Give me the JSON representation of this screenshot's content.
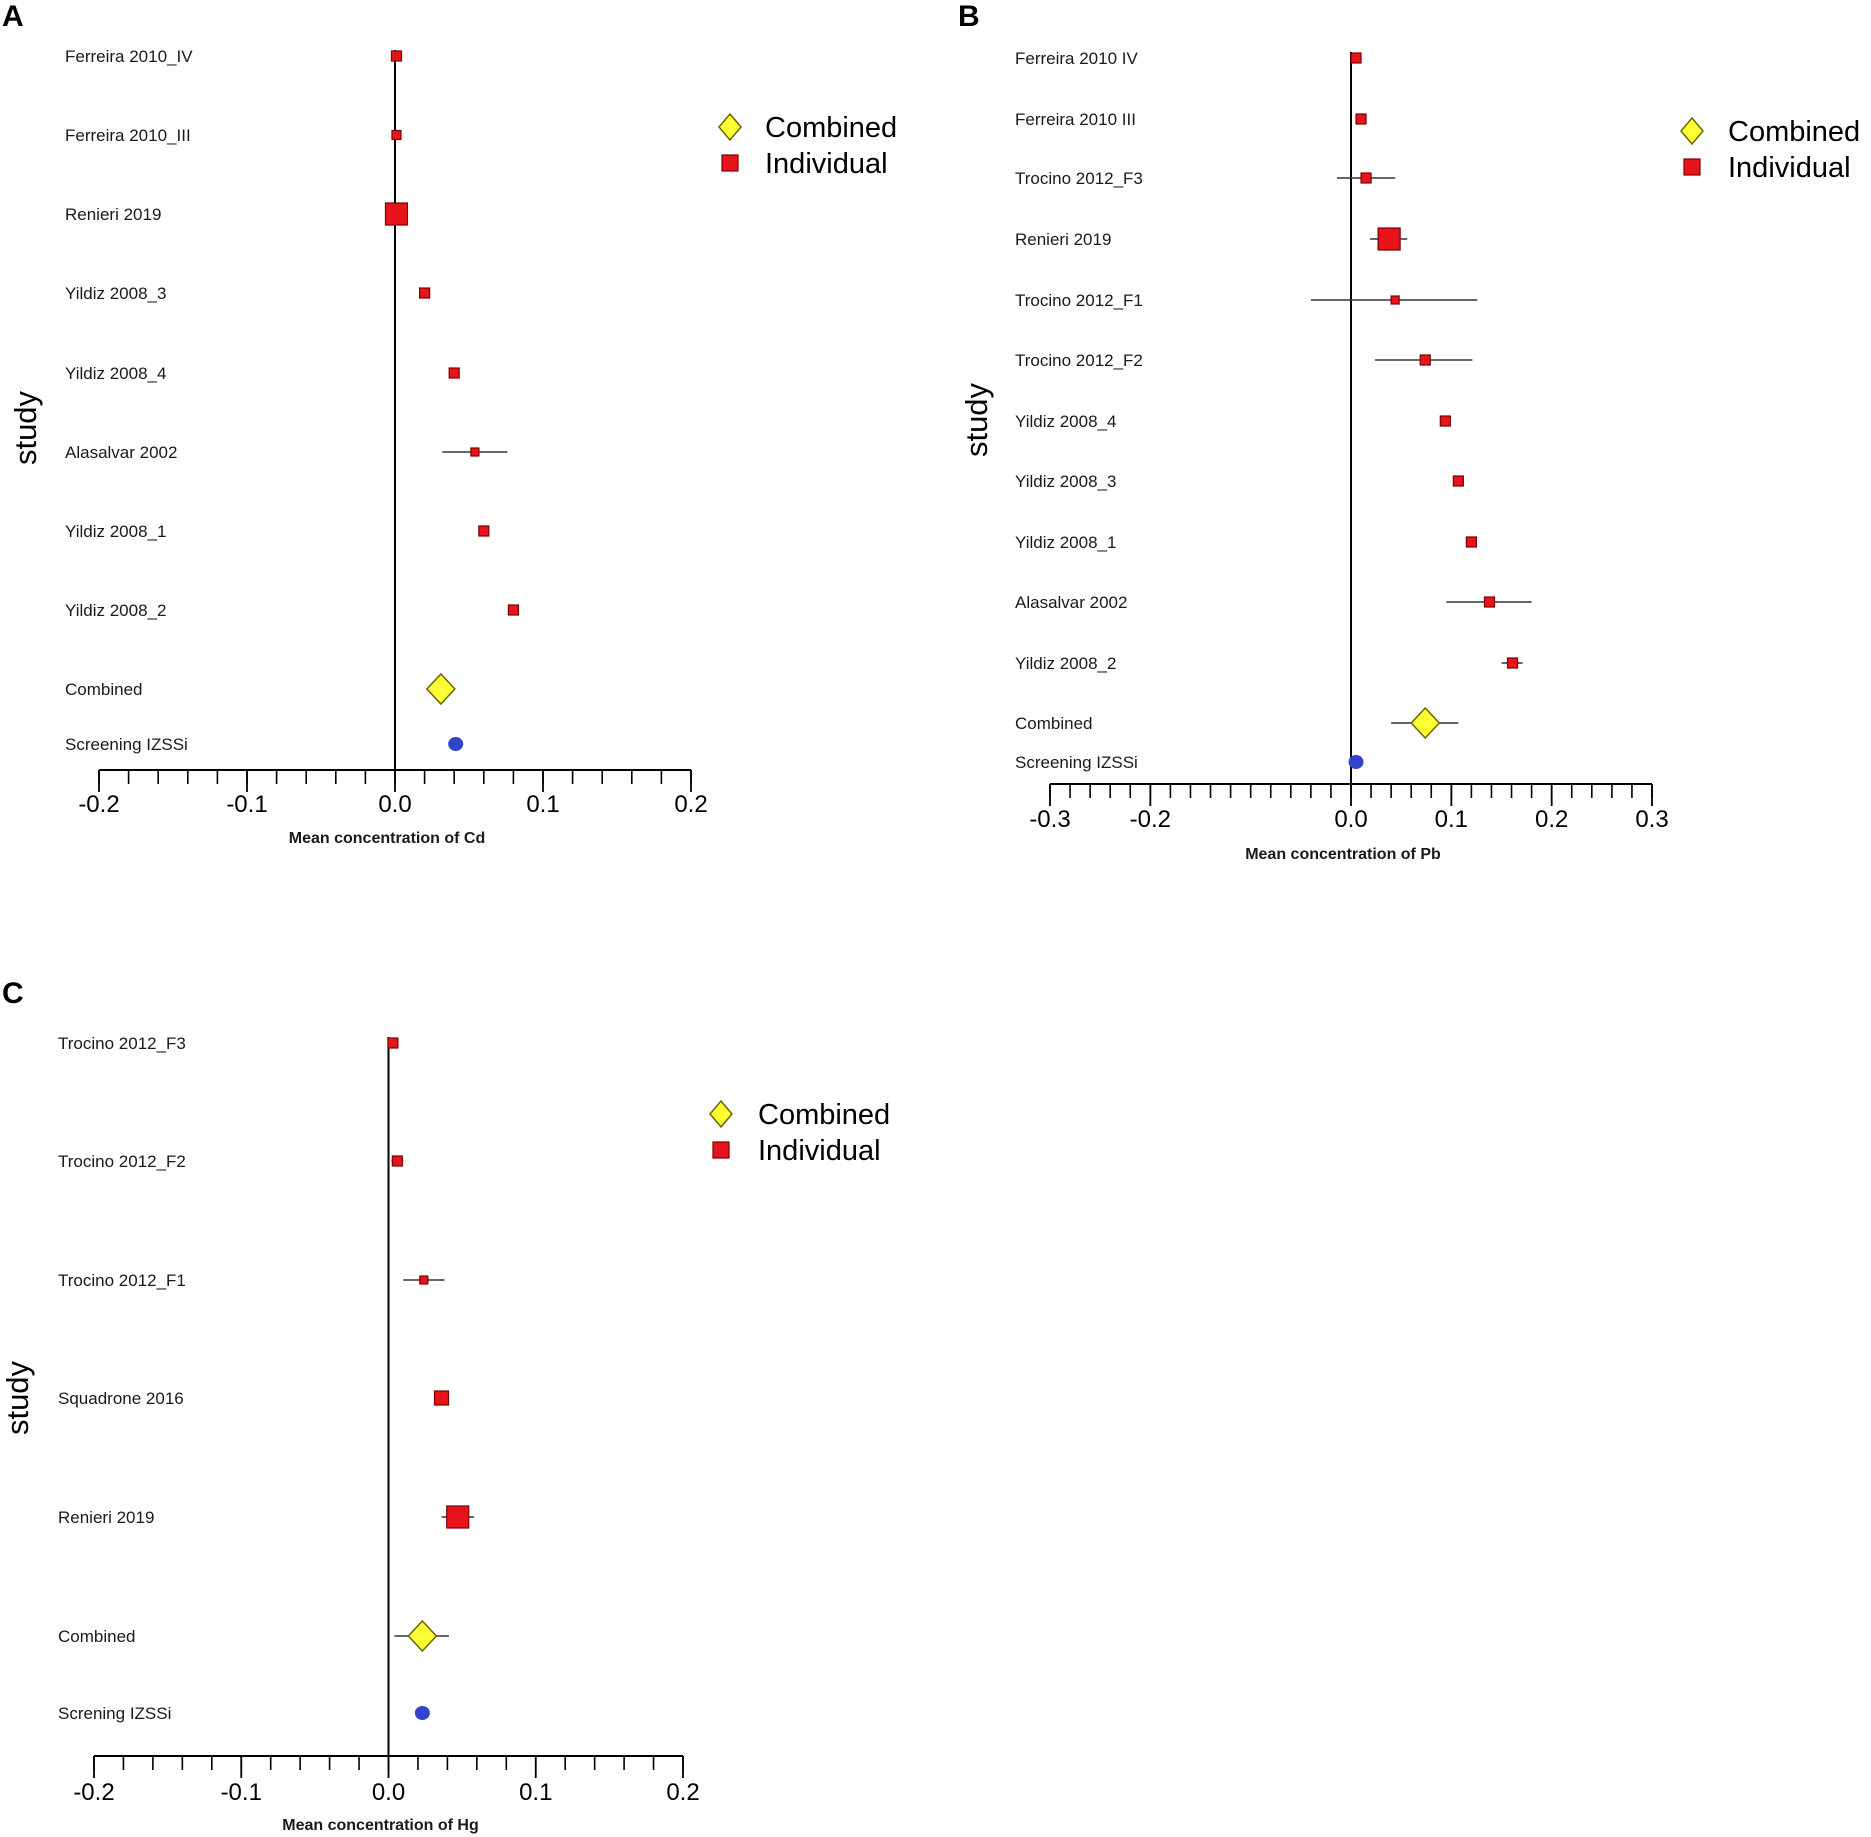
{
  "figure": {
    "colors": {
      "combined_fill": "#ffff33",
      "combined_stroke": "#666600",
      "individual_fill": "#e8141c",
      "individual_stroke": "#7a0000",
      "screening_fill": "#3344cc",
      "axis": "#000000"
    }
  },
  "chart_data": [
    {
      "type": "forest",
      "panel": "A",
      "ylabel": "study",
      "xlabel": "Mean concentration of Cd",
      "xlim": [
        -0.2,
        0.2
      ],
      "xticks": [
        -0.2,
        -0.1,
        0.0,
        0.1,
        0.2
      ],
      "xtick_labels": [
        "-0.2",
        "-0.1",
        "0.0",
        "0.1",
        "0.2"
      ],
      "minor_step": 0.02,
      "legend": [
        {
          "kind": "combined",
          "label": "Combined"
        },
        {
          "kind": "individual",
          "label": "Individual"
        }
      ],
      "rows": [
        {
          "label": "Ferreira 2010_IV",
          "kind": "individual",
          "mean": 0.001,
          "lo": 0.001,
          "hi": 0.001,
          "weight": 1.0
        },
        {
          "label": "Ferreira 2010_III",
          "kind": "individual",
          "mean": 0.001,
          "lo": 0.001,
          "hi": 0.001,
          "weight": 0.9
        },
        {
          "label": "Renieri 2019",
          "kind": "individual",
          "mean": 0.001,
          "lo": 0.001,
          "hi": 0.001,
          "weight": 2.2
        },
        {
          "label": "Yildiz 2008_3",
          "kind": "individual",
          "mean": 0.02,
          "lo": 0.02,
          "hi": 0.02,
          "weight": 1.0
        },
        {
          "label": "Yildiz 2008_4",
          "kind": "individual",
          "mean": 0.04,
          "lo": 0.04,
          "hi": 0.04,
          "weight": 1.0
        },
        {
          "label": "Alasalvar 2002",
          "kind": "individual",
          "mean": 0.054,
          "lo": 0.032,
          "hi": 0.076,
          "weight": 0.8
        },
        {
          "label": "Yildiz 2008_1",
          "kind": "individual",
          "mean": 0.06,
          "lo": 0.06,
          "hi": 0.06,
          "weight": 1.0
        },
        {
          "label": "Yildiz 2008_2",
          "kind": "individual",
          "mean": 0.08,
          "lo": 0.08,
          "hi": 0.08,
          "weight": 1.0
        },
        {
          "label": "Combined",
          "kind": "combined",
          "mean": 0.031,
          "lo": 0.031,
          "hi": 0.031,
          "weight": 1.0
        },
        {
          "label": "Screening IZSSi",
          "kind": "screening",
          "mean": 0.041,
          "lo": 0.041,
          "hi": 0.041,
          "weight": 1.0
        }
      ]
    },
    {
      "type": "forest",
      "panel": "B",
      "ylabel": "study",
      "xlabel": "Mean concentration of Pb",
      "xlim": [
        -0.3,
        0.3
      ],
      "xticks": [
        -0.3,
        -0.2,
        0.0,
        0.1,
        0.2,
        0.3
      ],
      "xtick_labels": [
        "-0.3",
        "-0.2",
        "0.0",
        "0.1",
        "0.2",
        "0.3"
      ],
      "minor_step": 0.02,
      "legend": [
        {
          "kind": "combined",
          "label": "Combined"
        },
        {
          "kind": "individual",
          "label": "Individual"
        }
      ],
      "rows": [
        {
          "label": "Ferreira 2010 IV",
          "kind": "individual",
          "mean": 0.005,
          "lo": 0.005,
          "hi": 0.005,
          "weight": 1.0
        },
        {
          "label": "Ferreira 2010 III",
          "kind": "individual",
          "mean": 0.01,
          "lo": 0.01,
          "hi": 0.01,
          "weight": 1.0
        },
        {
          "label": "Trocino 2012_F3",
          "kind": "individual",
          "mean": 0.015,
          "lo": -0.014,
          "hi": 0.044,
          "weight": 1.0
        },
        {
          "label": "Renieri 2019",
          "kind": "individual",
          "mean": 0.038,
          "lo": 0.019,
          "hi": 0.056,
          "weight": 2.2
        },
        {
          "label": "Trocino 2012_F1",
          "kind": "individual",
          "mean": 0.044,
          "lo": -0.04,
          "hi": 0.126,
          "weight": 0.8
        },
        {
          "label": "Trocino 2012_F2",
          "kind": "individual",
          "mean": 0.074,
          "lo": 0.024,
          "hi": 0.121,
          "weight": 1.0
        },
        {
          "label": "Yildiz 2008_4",
          "kind": "individual",
          "mean": 0.094,
          "lo": 0.094,
          "hi": 0.094,
          "weight": 1.0
        },
        {
          "label": "Yildiz 2008_3",
          "kind": "individual",
          "mean": 0.107,
          "lo": 0.107,
          "hi": 0.107,
          "weight": 1.0
        },
        {
          "label": "Yildiz 2008_1",
          "kind": "individual",
          "mean": 0.12,
          "lo": 0.12,
          "hi": 0.12,
          "weight": 1.0
        },
        {
          "label": "Alasalvar 2002",
          "kind": "individual",
          "mean": 0.138,
          "lo": 0.095,
          "hi": 0.18,
          "weight": 1.0
        },
        {
          "label": "Yildiz 2008_2",
          "kind": "individual",
          "mean": 0.161,
          "lo": 0.15,
          "hi": 0.171,
          "weight": 1.0
        },
        {
          "label": "Combined",
          "kind": "combined",
          "mean": 0.074,
          "lo": 0.04,
          "hi": 0.107,
          "weight": 1.0
        },
        {
          "label": "Screening IZSSi",
          "kind": "screening",
          "mean": 0.005,
          "lo": 0.005,
          "hi": 0.005,
          "weight": 1.0
        }
      ]
    },
    {
      "type": "forest",
      "panel": "C",
      "ylabel": "study",
      "xlabel": "Mean concentration of Hg",
      "xlim": [
        -0.2,
        0.2
      ],
      "xticks": [
        -0.2,
        -0.1,
        0.0,
        0.1,
        0.2
      ],
      "xtick_labels": [
        "-0.2",
        "-0.1",
        "0.0",
        "0.1",
        "0.2"
      ],
      "minor_step": 0.02,
      "legend": [
        {
          "kind": "combined",
          "label": "Combined"
        },
        {
          "kind": "individual",
          "label": "Individual"
        }
      ],
      "rows": [
        {
          "label": "Trocino 2012_F3",
          "kind": "individual",
          "mean": 0.003,
          "lo": 0.003,
          "hi": 0.003,
          "weight": 1.0
        },
        {
          "label": "Trocino 2012_F2",
          "kind": "individual",
          "mean": 0.006,
          "lo": 0.002,
          "hi": 0.01,
          "weight": 1.0
        },
        {
          "label": "Trocino 2012_F1",
          "kind": "individual",
          "mean": 0.024,
          "lo": 0.01,
          "hi": 0.038,
          "weight": 0.8
        },
        {
          "label": "Squadrone 2016",
          "kind": "individual",
          "mean": 0.036,
          "lo": 0.036,
          "hi": 0.036,
          "weight": 1.4
        },
        {
          "label": "Renieri 2019",
          "kind": "individual",
          "mean": 0.047,
          "lo": 0.036,
          "hi": 0.058,
          "weight": 2.2
        },
        {
          "label": "Combined",
          "kind": "combined",
          "mean": 0.023,
          "lo": 0.004,
          "hi": 0.041,
          "weight": 1.0
        },
        {
          "label": "Screning IZSSi",
          "kind": "screening",
          "mean": 0.023,
          "lo": 0.023,
          "hi": 0.023,
          "weight": 1.0
        }
      ]
    }
  ]
}
